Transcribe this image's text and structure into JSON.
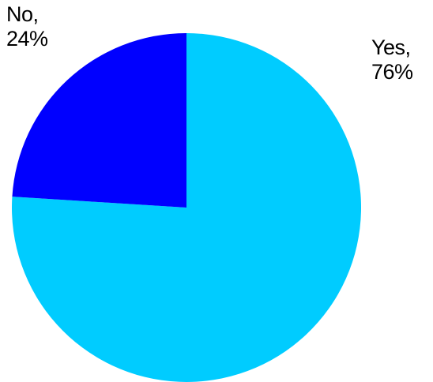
{
  "chart_data": {
    "type": "pie",
    "slices": [
      {
        "label": "Yes,",
        "percent_label": "76%",
        "value": 76,
        "color": "#00CCFF"
      },
      {
        "label": "No,",
        "percent_label": "24%",
        "value": 24,
        "color": "#0000FF"
      }
    ],
    "start_angle_deg": 0,
    "direction": "clockwise",
    "legend": "none"
  }
}
